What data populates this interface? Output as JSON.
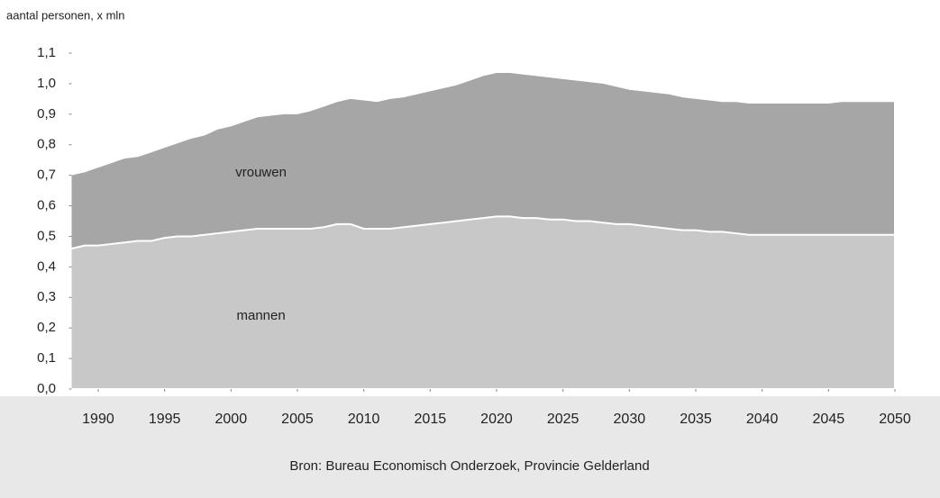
{
  "chart_data": {
    "type": "stacked_area",
    "y_label": "aantal personen, x mln",
    "source": "Bron: Bureau Economisch Onderzoek, Provincie Gelderland",
    "x": [
      1988,
      1989,
      1990,
      1991,
      1992,
      1993,
      1994,
      1995,
      1996,
      1997,
      1998,
      1999,
      2000,
      2001,
      2002,
      2003,
      2004,
      2005,
      2006,
      2007,
      2008,
      2009,
      2010,
      2011,
      2012,
      2013,
      2014,
      2015,
      2016,
      2017,
      2018,
      2019,
      2020,
      2021,
      2022,
      2023,
      2024,
      2025,
      2026,
      2027,
      2028,
      2029,
      2030,
      2031,
      2032,
      2033,
      2034,
      2035,
      2036,
      2037,
      2038,
      2039,
      2040,
      2041,
      2042,
      2043,
      2044,
      2045,
      2046,
      2047,
      2048,
      2049,
      2050
    ],
    "series": [
      {
        "name": "mannen",
        "color": "#c8c8c8",
        "values": [
          0.46,
          0.47,
          0.47,
          0.475,
          0.48,
          0.485,
          0.485,
          0.495,
          0.5,
          0.5,
          0.505,
          0.51,
          0.515,
          0.52,
          0.525,
          0.525,
          0.525,
          0.525,
          0.525,
          0.53,
          0.54,
          0.54,
          0.525,
          0.525,
          0.525,
          0.53,
          0.535,
          0.54,
          0.545,
          0.55,
          0.555,
          0.56,
          0.565,
          0.565,
          0.56,
          0.56,
          0.555,
          0.555,
          0.55,
          0.55,
          0.545,
          0.54,
          0.54,
          0.535,
          0.53,
          0.525,
          0.52,
          0.52,
          0.515,
          0.515,
          0.51,
          0.505,
          0.505,
          0.505,
          0.505,
          0.505,
          0.505,
          0.505,
          0.505,
          0.505,
          0.505,
          0.505,
          0.505
        ]
      },
      {
        "name": "vrouwen",
        "color": "#a6a6a6",
        "values": [
          0.24,
          0.24,
          0.255,
          0.265,
          0.275,
          0.275,
          0.29,
          0.295,
          0.305,
          0.32,
          0.325,
          0.34,
          0.345,
          0.355,
          0.365,
          0.37,
          0.375,
          0.375,
          0.385,
          0.395,
          0.4,
          0.41,
          0.42,
          0.415,
          0.425,
          0.425,
          0.43,
          0.435,
          0.44,
          0.445,
          0.455,
          0.465,
          0.47,
          0.47,
          0.47,
          0.465,
          0.465,
          0.46,
          0.46,
          0.455,
          0.455,
          0.45,
          0.44,
          0.44,
          0.44,
          0.44,
          0.435,
          0.43,
          0.43,
          0.425,
          0.43,
          0.43,
          0.43,
          0.43,
          0.43,
          0.43,
          0.43,
          0.43,
          0.435,
          0.435,
          0.435,
          0.435,
          0.435
        ]
      }
    ],
    "xlim": [
      1988,
      2050
    ],
    "xticks": [
      1990,
      1995,
      2000,
      2005,
      2010,
      2015,
      2020,
      2025,
      2030,
      2035,
      2040,
      2045,
      2050
    ],
    "ylim": [
      0,
      1.1
    ],
    "yticks": [
      {
        "value": 0,
        "label": "0,0"
      },
      {
        "value": 0.1,
        "label": "0,1"
      },
      {
        "value": 0.2,
        "label": "0,2"
      },
      {
        "value": 0.3,
        "label": "0,3"
      },
      {
        "value": 0.4,
        "label": "0,4"
      },
      {
        "value": 0.5,
        "label": "0,5"
      },
      {
        "value": 0.6,
        "label": "0,6"
      },
      {
        "value": 0.7,
        "label": "0,7"
      },
      {
        "value": 0.8,
        "label": "0,8"
      },
      {
        "value": 0.9,
        "label": "0,9"
      },
      {
        "value": 1,
        "label": "1,0"
      },
      {
        "value": 1.1,
        "label": "1,1"
      }
    ]
  }
}
